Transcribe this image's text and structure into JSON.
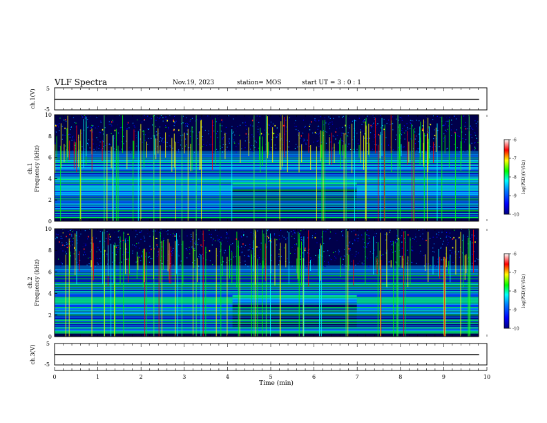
{
  "header": {
    "title": "VLF Spectra",
    "date": "Nov.19, 2023",
    "station": "station= MOS",
    "start_ut": "start UT = 3 : 0 : 1"
  },
  "colors": {
    "frame": "#000000",
    "background": "#ffffff",
    "colormap": [
      "#000080",
      "#0000ff",
      "#0080ff",
      "#00ffff",
      "#00ff00",
      "#ffff00",
      "#ff0000",
      "#ffffff"
    ]
  },
  "chart_data": [
    {
      "type": "line",
      "name": "ch1-waveform",
      "ylabel": "ch.1(V)",
      "ylim": [
        -5,
        5
      ],
      "yticks": [
        "5",
        "-5"
      ],
      "x": [
        0,
        10
      ],
      "y": [
        -0.2,
        -0.2
      ],
      "xlim": [
        0,
        10
      ]
    },
    {
      "type": "heatmap",
      "name": "ch1-spectrogram",
      "ylabel_top": "ch.1",
      "ylabel": "Frequency (kHz)",
      "ylim": [
        0,
        10
      ],
      "yticks": [
        "0",
        "2",
        "4",
        "6",
        "8",
        "10"
      ],
      "xlim": [
        0,
        10
      ],
      "colorbar": {
        "label": "log(PSD)(V²/Hz)",
        "range": [
          -10,
          -6
        ],
        "ticks": [
          "-6",
          "-7",
          "-8",
          "-9",
          "-10"
        ]
      }
    },
    {
      "type": "heatmap",
      "name": "ch2-spectrogram",
      "ylabel_top": "ch.2",
      "ylabel": "Frequency (kHz)",
      "ylim": [
        0,
        10
      ],
      "yticks": [
        "0",
        "2",
        "4",
        "6",
        "8",
        "10"
      ],
      "xlim": [
        0,
        10
      ],
      "colorbar": {
        "label": "log(PSD)(V²/Hz)",
        "range": [
          -10,
          -6
        ],
        "ticks": [
          "-6",
          "-7",
          "-8",
          "-9",
          "-10"
        ]
      }
    },
    {
      "type": "line",
      "name": "ch3-waveform",
      "ylabel": "ch.3(V)",
      "ylim": [
        -5,
        5
      ],
      "yticks": [
        "5",
        "-5"
      ],
      "x": [
        0,
        10
      ],
      "y": [
        -0.2,
        -0.2
      ],
      "xlim": [
        0,
        10
      ],
      "xlabel": "Time (min)",
      "xticks": [
        "0",
        "1",
        "2",
        "3",
        "4",
        "5",
        "6",
        "7",
        "8",
        "9",
        "10"
      ]
    }
  ]
}
